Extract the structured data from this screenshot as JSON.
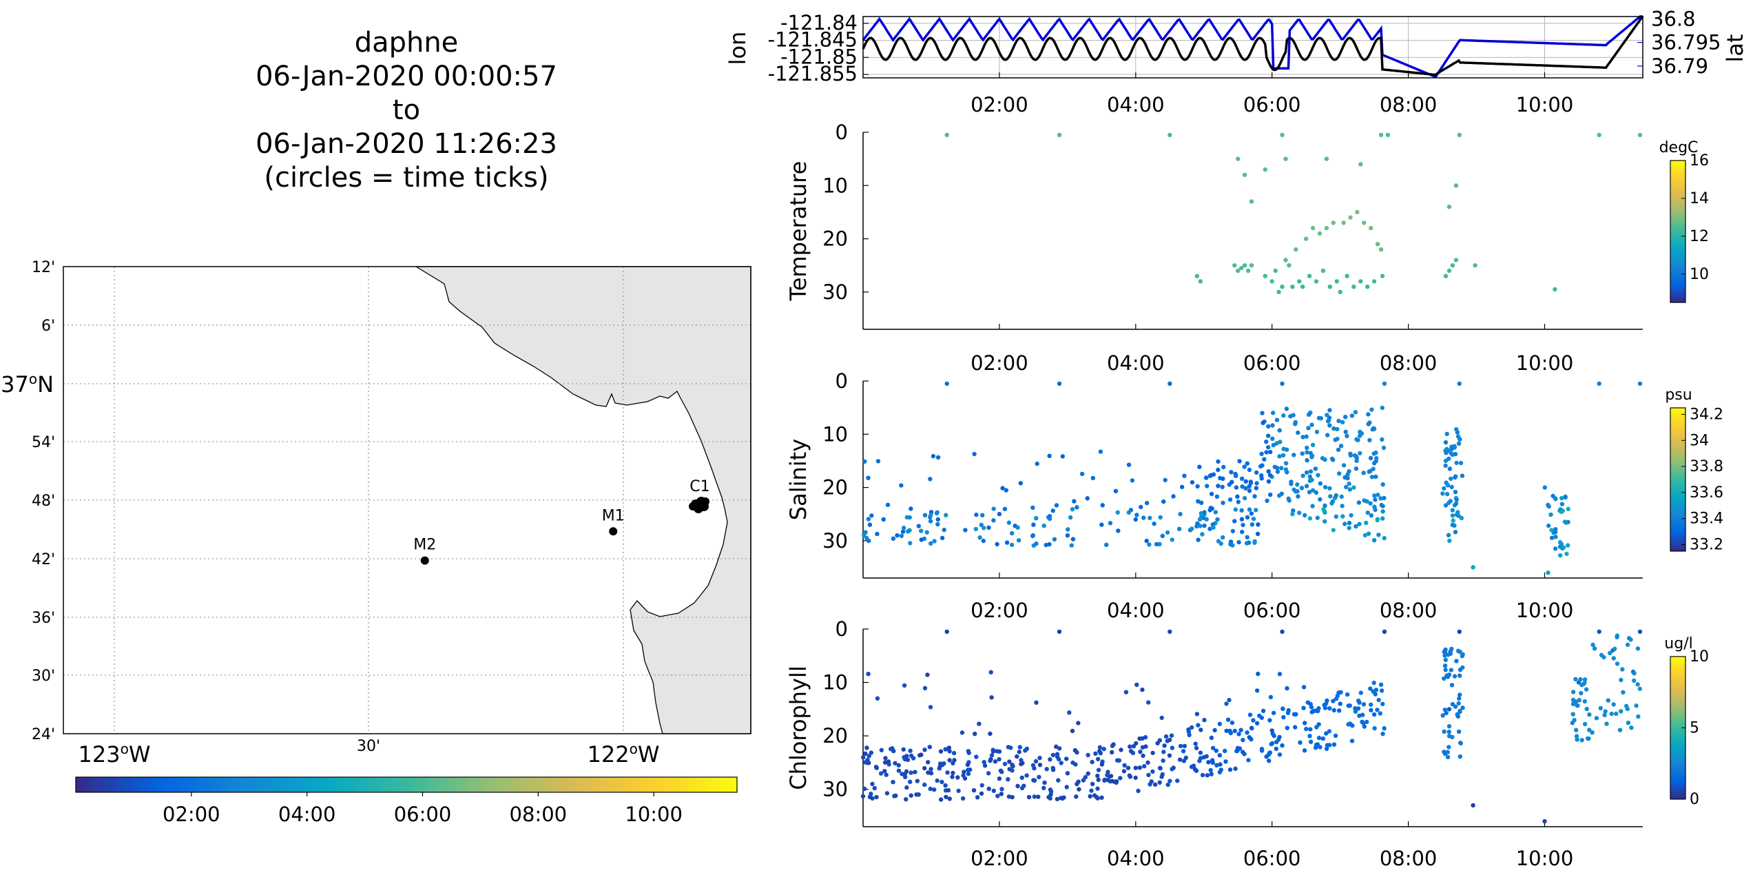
{
  "title": {
    "platform": "daphne",
    "start": "06-Jan-2020 00:00:57",
    "to": "to",
    "end": "06-Jan-2020 11:26:23",
    "note": "(circles = time ticks)"
  },
  "colors": {
    "lon_line": "#000000",
    "lat_line": "#0000dd",
    "land": "#e5e5e5",
    "grid": "#b5b5b5",
    "parula": [
      "#352a87",
      "#0363e1",
      "#1485d4",
      "#06a7c6",
      "#38b99e",
      "#92bf73",
      "#d9ba56",
      "#fcce2e",
      "#f9fb0e"
    ]
  },
  "map": {
    "lat_ticks": [
      "12'",
      "6'",
      "37",
      "54'",
      "48'",
      "42'",
      "36'",
      "30'",
      "24'"
    ],
    "lat_degree_suffix": "o",
    "lat_hemisphere": "N",
    "lon_ticks": [
      {
        "deg": "123",
        "suffix": "o",
        "hem": "W"
      },
      {
        "deg": "30'",
        "suffix": "",
        "hem": ""
      },
      {
        "deg": "122",
        "suffix": "o",
        "hem": "W"
      }
    ],
    "moorings": [
      {
        "name": "M2",
        "lat": 36.697,
        "lon": -122.39
      },
      {
        "name": "M1",
        "lat": 36.747,
        "lon": -122.02
      },
      {
        "name": "C1",
        "lat": 36.797,
        "lon": -121.85
      }
    ],
    "time_colorbar_ticks": [
      "02:00",
      "04:00",
      "06:00",
      "08:00",
      "10:00"
    ]
  },
  "chart_data": [
    {
      "type": "line",
      "name": "position",
      "ylabel_left": "lon",
      "ylabel_right": "lat",
      "yticks_left": [
        "-121.84",
        "-121.845",
        "-121.85",
        "-121.855"
      ],
      "yticks_right": [
        "36.8",
        "36.795",
        "36.79"
      ],
      "ylim_left": [
        -121.856,
        -121.838
      ],
      "ylim_right": [
        36.7875,
        36.8005
      ],
      "xticks": [
        "02:00",
        "04:00",
        "06:00",
        "08:00",
        "10:00"
      ],
      "xlim_hours": [
        0.0,
        11.44
      ],
      "grid": true
    },
    {
      "type": "scatter",
      "name": "temperature",
      "ylabel": "Temperature",
      "yticks": [
        "0",
        "10",
        "20",
        "30"
      ],
      "ylim": [
        37,
        0
      ],
      "xticks": [
        "02:00",
        "04:00",
        "06:00",
        "08:00",
        "10:00"
      ],
      "colorbar": {
        "unit": "degC",
        "ticks": [
          "16",
          "14",
          "12",
          "10"
        ],
        "range": [
          8.5,
          16
        ]
      },
      "points": [
        [
          1.23,
          0.5,
          12.5
        ],
        [
          2.88,
          0.5,
          12.5
        ],
        [
          4.5,
          0.5,
          12.5
        ],
        [
          6.15,
          0.5,
          12.5
        ],
        [
          7.6,
          0.5,
          12.5
        ],
        [
          7.7,
          0.5,
          12.5
        ],
        [
          8.75,
          0.5,
          12.5
        ],
        [
          10.8,
          0.5,
          12.5
        ],
        [
          11.4,
          0.5,
          12.5
        ],
        [
          5.5,
          5,
          12.6
        ],
        [
          5.6,
          8,
          12.6
        ],
        [
          5.9,
          7,
          12.6
        ],
        [
          6.2,
          5,
          12.6
        ],
        [
          6.8,
          5,
          12.6
        ],
        [
          7.3,
          6,
          12.6
        ],
        [
          8.7,
          10,
          12.6
        ],
        [
          8.6,
          14,
          12.6
        ],
        [
          5.7,
          13,
          12.6
        ],
        [
          4.9,
          27,
          12.4
        ],
        [
          4.95,
          28,
          12.4
        ],
        [
          5.45,
          25,
          12.5
        ],
        [
          5.5,
          26,
          12.5
        ],
        [
          5.55,
          25.5,
          12.5
        ],
        [
          5.6,
          25,
          12.5
        ],
        [
          5.65,
          26,
          12.5
        ],
        [
          5.7,
          25,
          12.5
        ],
        [
          5.9,
          27,
          12.4
        ],
        [
          6.0,
          28,
          12.4
        ],
        [
          6.05,
          26,
          12.4
        ],
        [
          6.1,
          30,
          12.3
        ],
        [
          6.15,
          29,
          12.3
        ],
        [
          6.2,
          24,
          12.6
        ],
        [
          6.25,
          25,
          12.6
        ],
        [
          6.3,
          29,
          12.3
        ],
        [
          6.35,
          22,
          12.7
        ],
        [
          6.4,
          28,
          12.3
        ],
        [
          6.45,
          29,
          12.3
        ],
        [
          6.5,
          20,
          12.8
        ],
        [
          6.55,
          27,
          12.4
        ],
        [
          6.6,
          18,
          12.8
        ],
        [
          6.65,
          28,
          12.4
        ],
        [
          6.7,
          19,
          12.8
        ],
        [
          6.75,
          26,
          12.4
        ],
        [
          6.8,
          18,
          12.8
        ],
        [
          6.85,
          29,
          12.3
        ],
        [
          6.9,
          17,
          12.8
        ],
        [
          6.95,
          28,
          12.3
        ],
        [
          7.0,
          30,
          12.3
        ],
        [
          7.05,
          17,
          12.8
        ],
        [
          7.1,
          27,
          12.4
        ],
        [
          7.15,
          16,
          12.9
        ],
        [
          7.2,
          29,
          12.3
        ],
        [
          7.25,
          15,
          12.9
        ],
        [
          7.3,
          28,
          12.3
        ],
        [
          7.35,
          17,
          12.8
        ],
        [
          7.4,
          29,
          12.3
        ],
        [
          7.45,
          18,
          12.8
        ],
        [
          7.5,
          28,
          12.3
        ],
        [
          7.55,
          21,
          12.7
        ],
        [
          7.6,
          22,
          12.7
        ],
        [
          7.62,
          27,
          12.4
        ],
        [
          8.55,
          27,
          12.4
        ],
        [
          8.6,
          26,
          12.4
        ],
        [
          8.65,
          25,
          12.4
        ],
        [
          8.7,
          24,
          12.5
        ],
        [
          8.98,
          25,
          12.5
        ],
        [
          10.15,
          29.5,
          12.3
        ]
      ]
    },
    {
      "type": "scatter",
      "name": "salinity",
      "ylabel": "Salinity",
      "yticks": [
        "0",
        "10",
        "20",
        "30"
      ],
      "ylim": [
        37,
        0
      ],
      "xticks": [
        "02:00",
        "04:00",
        "06:00",
        "08:00",
        "10:00"
      ],
      "colorbar": {
        "unit": "psu",
        "ticks": [
          "34.2",
          "34",
          "33.8",
          "33.6",
          "33.4",
          "33.2"
        ],
        "range": [
          33.15,
          34.25
        ]
      },
      "points": [
        [
          1.23,
          0.5,
          33.32
        ],
        [
          2.88,
          0.5,
          33.32
        ],
        [
          4.5,
          0.5,
          33.32
        ],
        [
          6.15,
          0.5,
          33.35
        ],
        [
          7.65,
          0.5,
          33.4
        ],
        [
          8.75,
          0.5,
          33.4
        ],
        [
          10.8,
          0.5,
          33.4
        ],
        [
          11.4,
          0.5,
          33.4
        ],
        [
          8.95,
          35,
          33.55
        ],
        [
          10.05,
          36,
          33.55
        ],
        [
          0.1,
          27,
          33.3
        ],
        [
          0.3,
          26,
          33.3
        ],
        [
          0.5,
          29,
          33.3
        ],
        [
          0.7,
          24,
          33.3
        ],
        [
          1.1,
          26,
          33.3
        ],
        [
          1.5,
          28,
          33.3
        ],
        [
          2.0,
          25,
          33.3
        ],
        [
          2.5,
          27,
          33.3
        ],
        [
          3.0,
          29,
          33.3
        ],
        [
          3.5,
          27,
          33.3
        ],
        [
          4.0,
          26,
          33.3
        ],
        [
          4.8,
          28,
          33.35
        ],
        [
          5.2,
          26,
          33.4
        ],
        [
          5.6,
          22,
          33.45
        ],
        [
          6.0,
          18,
          33.5
        ],
        [
          6.3,
          25,
          33.55
        ],
        [
          6.6,
          12,
          33.5
        ],
        [
          6.9,
          28,
          33.6
        ],
        [
          7.2,
          20,
          33.55
        ],
        [
          7.5,
          9,
          33.45
        ],
        [
          8.55,
          15,
          33.45
        ],
        [
          8.7,
          22,
          33.5
        ],
        [
          10.1,
          28,
          33.6
        ],
        [
          10.25,
          22,
          33.55
        ]
      ]
    },
    {
      "type": "scatter",
      "name": "chlorophyll",
      "ylabel": "Chlorophyll",
      "yticks": [
        "0",
        "10",
        "20",
        "30"
      ],
      "ylim": [
        37,
        0
      ],
      "xticks": [
        "02:00",
        "04:00",
        "06:00",
        "08:00",
        "10:00"
      ],
      "colorbar": {
        "unit": "ug/l",
        "ticks": [
          "10",
          "5",
          "0"
        ],
        "range": [
          0,
          10
        ]
      },
      "points": [
        [
          1.23,
          0.5,
          0.5
        ],
        [
          2.88,
          0.5,
          0.5
        ],
        [
          4.5,
          0.5,
          0.5
        ],
        [
          6.15,
          0.5,
          0.5
        ],
        [
          7.65,
          0.5,
          0.5
        ],
        [
          8.75,
          0.5,
          0.5
        ],
        [
          10.8,
          0.5,
          0.8
        ],
        [
          11.4,
          0.5,
          0.8
        ],
        [
          8.95,
          33,
          0.5
        ],
        [
          10.0,
          36,
          0.5
        ],
        [
          0.2,
          26,
          0.6
        ],
        [
          1.0,
          27,
          0.6
        ],
        [
          2.0,
          28,
          0.6
        ],
        [
          3.0,
          27,
          0.6
        ],
        [
          4.0,
          26,
          0.6
        ],
        [
          5.0,
          24,
          0.8
        ],
        [
          6.0,
          19,
          1.0
        ],
        [
          7.0,
          14,
          1.3
        ],
        [
          7.5,
          16,
          1.2
        ],
        [
          8.6,
          15,
          1.1
        ],
        [
          10.5,
          10,
          1.5
        ],
        [
          11.0,
          4,
          1.8
        ],
        [
          11.3,
          8,
          1.6
        ]
      ]
    }
  ]
}
